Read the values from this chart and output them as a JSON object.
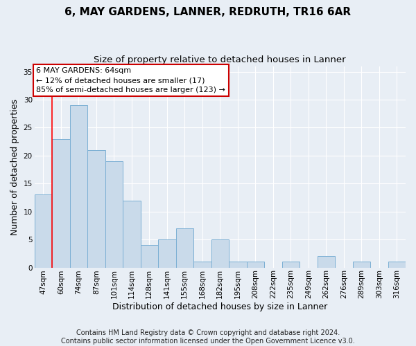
{
  "title": "6, MAY GARDENS, LANNER, REDRUTH, TR16 6AR",
  "subtitle": "Size of property relative to detached houses in Lanner",
  "xlabel": "Distribution of detached houses by size in Lanner",
  "ylabel": "Number of detached properties",
  "categories": [
    "47sqm",
    "60sqm",
    "74sqm",
    "87sqm",
    "101sqm",
    "114sqm",
    "128sqm",
    "141sqm",
    "155sqm",
    "168sqm",
    "182sqm",
    "195sqm",
    "208sqm",
    "222sqm",
    "235sqm",
    "249sqm",
    "262sqm",
    "276sqm",
    "289sqm",
    "303sqm",
    "316sqm"
  ],
  "values": [
    13,
    23,
    29,
    21,
    19,
    12,
    4,
    5,
    7,
    1,
    5,
    1,
    1,
    0,
    1,
    0,
    2,
    0,
    1,
    0,
    1
  ],
  "bar_color": "#c9daea",
  "bar_edge_color": "#7bafd4",
  "ylim": [
    0,
    36
  ],
  "yticks": [
    0,
    5,
    10,
    15,
    20,
    25,
    30,
    35
  ],
  "red_line_x": 0.5,
  "annotation_box_text_line1": "6 MAY GARDENS: 64sqm",
  "annotation_box_text_line2": "← 12% of detached houses are smaller (17)",
  "annotation_box_text_line3": "85% of semi-detached houses are larger (123) →",
  "annotation_box_color": "white",
  "annotation_box_edge_color": "#cc0000",
  "footer_line1": "Contains HM Land Registry data © Crown copyright and database right 2024.",
  "footer_line2": "Contains public sector information licensed under the Open Government Licence v3.0.",
  "background_color": "#e8eef5",
  "plot_bg_color": "#e8eef5",
  "grid_color": "white",
  "title_fontsize": 11,
  "subtitle_fontsize": 9.5,
  "axis_label_fontsize": 9,
  "tick_fontsize": 7.5,
  "annotation_fontsize": 8,
  "footer_fontsize": 7
}
